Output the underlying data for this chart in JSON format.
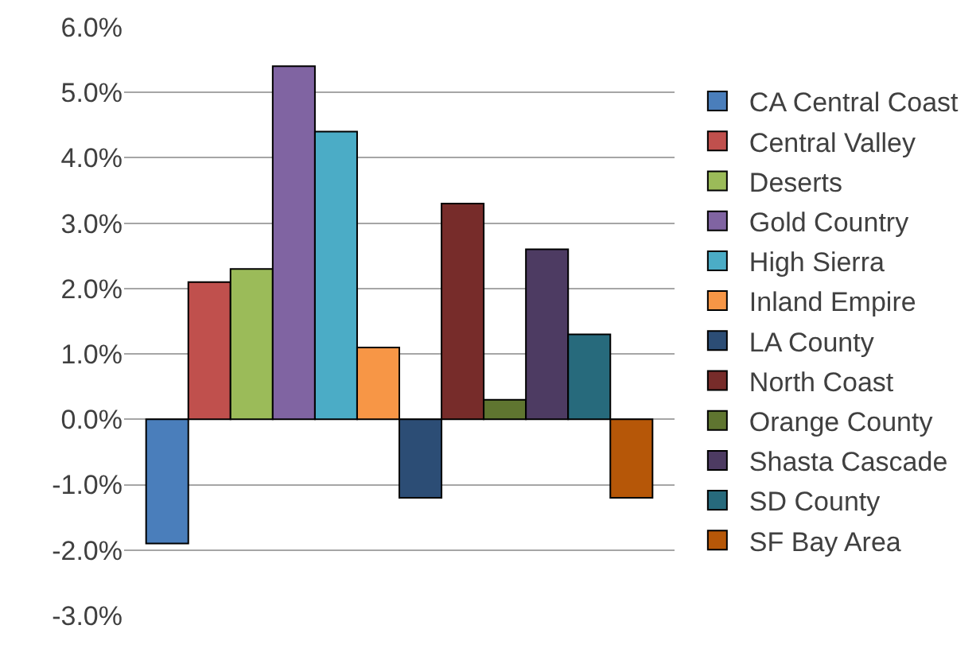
{
  "chart_data": {
    "type": "bar",
    "categories": [
      null
    ],
    "series": [
      {
        "name": "CA Central Coast",
        "color": "#4a7ebb",
        "values": [
          -1.9
        ]
      },
      {
        "name": "Central Valley",
        "color": "#c0504d",
        "values": [
          2.1
        ]
      },
      {
        "name": "Deserts",
        "color": "#9bbb59",
        "values": [
          2.3
        ]
      },
      {
        "name": "Gold Country",
        "color": "#8064a2",
        "values": [
          5.4
        ]
      },
      {
        "name": "High Sierra",
        "color": "#4bacc6",
        "values": [
          4.4
        ]
      },
      {
        "name": "Inland Empire",
        "color": "#f79646",
        "values": [
          1.1
        ]
      },
      {
        "name": "LA County",
        "color": "#2c4d75",
        "values": [
          -1.2
        ]
      },
      {
        "name": "North Coast",
        "color": "#772c2a",
        "values": [
          3.3
        ]
      },
      {
        "name": "Orange County",
        "color": "#5f7530",
        "values": [
          0.3
        ]
      },
      {
        "name": "Shasta Cascade",
        "color": "#4d3b62",
        "values": [
          2.6
        ]
      },
      {
        "name": "SD County",
        "color": "#276a7c",
        "values": [
          1.3
        ]
      },
      {
        "name": "SF Bay Area",
        "color": "#b65708",
        "values": [
          -1.2
        ]
      }
    ],
    "ylim": [
      -3,
      6
    ],
    "yticks": [
      {
        "value": -3,
        "label": "-3.0%"
      },
      {
        "value": -2,
        "label": "-2.0%"
      },
      {
        "value": -1,
        "label": "-1.0%"
      },
      {
        "value": 0,
        "label": "0.0%"
      },
      {
        "value": 1,
        "label": "1.0%"
      },
      {
        "value": 2,
        "label": "2.0%"
      },
      {
        "value": 3,
        "label": "3.0%"
      },
      {
        "value": 4,
        "label": "4.0%"
      },
      {
        "value": 5,
        "label": "5.0%"
      },
      {
        "value": 6,
        "label": "6.0%"
      }
    ],
    "grid": "y",
    "legend": "right"
  }
}
